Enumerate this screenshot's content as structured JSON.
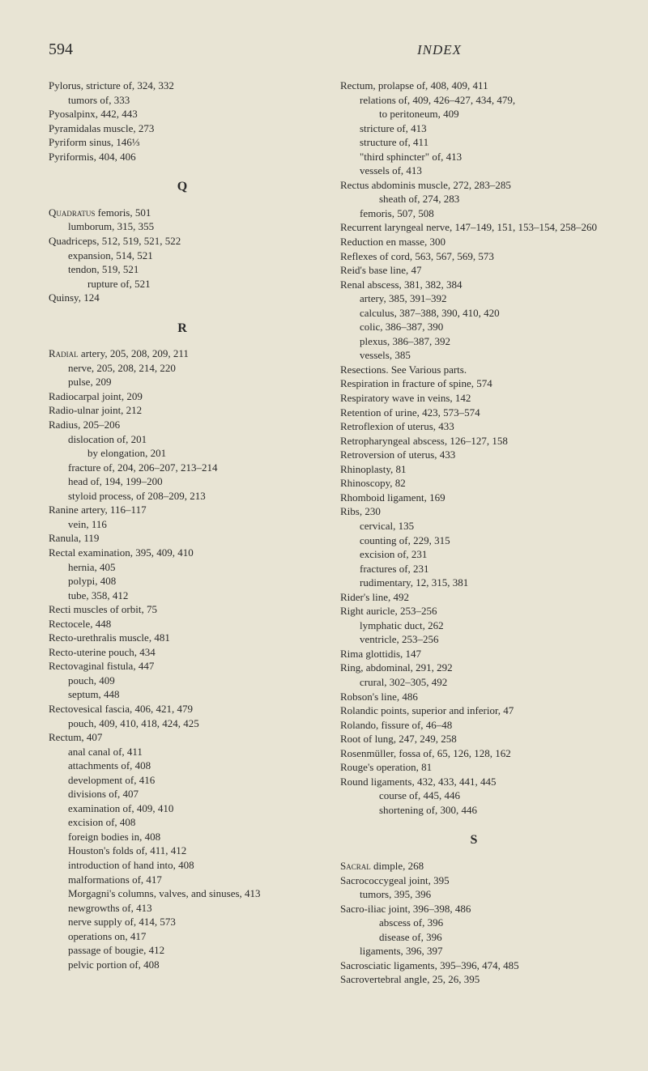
{
  "page_number": "594",
  "index_label": "INDEX",
  "left_column": [
    {
      "t": "Pylorus, stricture of, 324, 332",
      "i": 0
    },
    {
      "t": "tumors of, 333",
      "i": 1
    },
    {
      "t": "Pyosalpinx, 442, 443",
      "i": 0
    },
    {
      "t": "Pyramidalas muscle, 273",
      "i": 0
    },
    {
      "t": "Pyriform sinus, 146⅓",
      "i": 0
    },
    {
      "t": "Pyriformis, 404, 406",
      "i": 0
    },
    {
      "letter": "Q"
    },
    {
      "t": "Quadratus femoris, 501",
      "i": 0,
      "sc": true
    },
    {
      "t": "lumborum, 315, 355",
      "i": 1
    },
    {
      "t": "Quadriceps, 512, 519, 521, 522",
      "i": 0
    },
    {
      "t": "expansion, 514, 521",
      "i": 1
    },
    {
      "t": "tendon, 519, 521",
      "i": 1
    },
    {
      "t": "rupture of, 521",
      "i": 2
    },
    {
      "t": "Quinsy, 124",
      "i": 0
    },
    {
      "letter": "R"
    },
    {
      "t": "Radial artery, 205, 208, 209, 211",
      "i": 0,
      "sc": true
    },
    {
      "t": "nerve, 205, 208, 214, 220",
      "i": 1
    },
    {
      "t": "pulse, 209",
      "i": 1
    },
    {
      "t": "Radiocarpal joint, 209",
      "i": 0
    },
    {
      "t": "Radio-ulnar joint, 212",
      "i": 0
    },
    {
      "t": "Radius, 205–206",
      "i": 0
    },
    {
      "t": "dislocation of, 201",
      "i": 1
    },
    {
      "t": "by elongation, 201",
      "i": 2
    },
    {
      "t": "fracture of, 204, 206–207, 213–214",
      "i": 1
    },
    {
      "t": "head of, 194, 199–200",
      "i": 1
    },
    {
      "t": "styloid process, of 208–209, 213",
      "i": 1
    },
    {
      "t": "Ranine artery, 116–117",
      "i": 0
    },
    {
      "t": "vein, 116",
      "i": 1
    },
    {
      "t": "Ranula, 119",
      "i": 0
    },
    {
      "t": "Rectal examination, 395, 409, 410",
      "i": 0
    },
    {
      "t": "hernia, 405",
      "i": 1
    },
    {
      "t": "polypi, 408",
      "i": 1
    },
    {
      "t": "tube, 358, 412",
      "i": 1
    },
    {
      "t": "Recti muscles of orbit, 75",
      "i": 0
    },
    {
      "t": "Rectocele, 448",
      "i": 0
    },
    {
      "t": "Recto-urethralis muscle, 481",
      "i": 0
    },
    {
      "t": "Recto-uterine pouch, 434",
      "i": 0
    },
    {
      "t": "Rectovaginal fistula, 447",
      "i": 0
    },
    {
      "t": "pouch, 409",
      "i": 1
    },
    {
      "t": "septum, 448",
      "i": 1
    },
    {
      "t": "Rectovesical fascia, 406, 421, 479",
      "i": 0
    },
    {
      "t": "pouch, 409, 410, 418, 424, 425",
      "i": 1
    },
    {
      "t": "Rectum, 407",
      "i": 0
    },
    {
      "t": "anal canal of, 411",
      "i": 1
    },
    {
      "t": "attachments of, 408",
      "i": 1
    },
    {
      "t": "development of, 416",
      "i": 1
    },
    {
      "t": "divisions of, 407",
      "i": 1
    },
    {
      "t": "examination of, 409, 410",
      "i": 1
    },
    {
      "t": "excision of, 408",
      "i": 1
    },
    {
      "t": "foreign bodies in, 408",
      "i": 1
    },
    {
      "t": "Houston's folds of, 411, 412",
      "i": 1
    },
    {
      "t": "introduction of hand into, 408",
      "i": 1
    },
    {
      "t": "malformations of, 417",
      "i": 1
    },
    {
      "t": "Morgagni's columns, valves, and sinuses, 413",
      "i": 1
    },
    {
      "t": "newgrowths of, 413",
      "i": 1
    },
    {
      "t": "nerve supply of, 414, 573",
      "i": 1
    },
    {
      "t": "operations on, 417",
      "i": 1
    },
    {
      "t": "passage of bougie, 412",
      "i": 1
    },
    {
      "t": "pelvic portion of, 408",
      "i": 1
    }
  ],
  "right_column": [
    {
      "t": "Rectum, prolapse of, 408, 409, 411",
      "i": 0
    },
    {
      "t": "relations of, 409, 426–427, 434, 479,",
      "i": 1
    },
    {
      "t": "to peritoneum, 409",
      "i": 2
    },
    {
      "t": "stricture of, 413",
      "i": 1
    },
    {
      "t": "structure of, 411",
      "i": 1
    },
    {
      "t": "\"third sphincter\" of, 413",
      "i": 1
    },
    {
      "t": "vessels of, 413",
      "i": 1
    },
    {
      "t": "Rectus abdominis muscle, 272, 283–285",
      "i": 0
    },
    {
      "t": "sheath of, 274, 283",
      "i": 2
    },
    {
      "t": "femoris, 507, 508",
      "i": 1
    },
    {
      "t": "Recurrent laryngeal nerve, 147–149, 151, 153–154, 258–260",
      "i": 0
    },
    {
      "t": "Reduction en masse, 300",
      "i": 0
    },
    {
      "t": "Reflexes of cord, 563, 567, 569, 573",
      "i": 0
    },
    {
      "t": "Reid's base line, 47",
      "i": 0
    },
    {
      "t": "Renal abscess, 381, 382, 384",
      "i": 0
    },
    {
      "t": "artery, 385, 391–392",
      "i": 1
    },
    {
      "t": "calculus, 387–388, 390, 410, 420",
      "i": 1
    },
    {
      "t": "colic, 386–387, 390",
      "i": 1
    },
    {
      "t": "plexus, 386–387, 392",
      "i": 1
    },
    {
      "t": "vessels, 385",
      "i": 1
    },
    {
      "t": "Resections. See Various parts.",
      "i": 0
    },
    {
      "t": "Respiration in fracture of spine, 574",
      "i": 0
    },
    {
      "t": "Respiratory wave in veins, 142",
      "i": 0
    },
    {
      "t": "Retention of urine, 423, 573–574",
      "i": 0
    },
    {
      "t": "Retroflexion of uterus, 433",
      "i": 0
    },
    {
      "t": "Retropharyngeal abscess, 126–127, 158",
      "i": 0
    },
    {
      "t": "Retroversion of uterus, 433",
      "i": 0
    },
    {
      "t": "Rhinoplasty, 81",
      "i": 0
    },
    {
      "t": "Rhinoscopy, 82",
      "i": 0
    },
    {
      "t": "Rhomboid ligament, 169",
      "i": 0
    },
    {
      "t": "Ribs, 230",
      "i": 0
    },
    {
      "t": "cervical, 135",
      "i": 1
    },
    {
      "t": "counting of, 229, 315",
      "i": 1
    },
    {
      "t": "excision of, 231",
      "i": 1
    },
    {
      "t": "fractures of, 231",
      "i": 1
    },
    {
      "t": "rudimentary, 12, 315, 381",
      "i": 1
    },
    {
      "t": "Rider's line, 492",
      "i": 0
    },
    {
      "t": "Right auricle, 253–256",
      "i": 0
    },
    {
      "t": "lymphatic duct, 262",
      "i": 1
    },
    {
      "t": "ventricle, 253–256",
      "i": 1
    },
    {
      "t": "Rima glottidis, 147",
      "i": 0
    },
    {
      "t": "Ring, abdominal, 291, 292",
      "i": 0
    },
    {
      "t": "crural, 302–305, 492",
      "i": 1
    },
    {
      "t": "Robson's line, 486",
      "i": 0
    },
    {
      "t": "Rolandic points, superior and inferior, 47",
      "i": 0
    },
    {
      "t": "Rolando, fissure of, 46–48",
      "i": 0
    },
    {
      "t": "Root of lung, 247, 249, 258",
      "i": 0
    },
    {
      "t": "Rosenmüller, fossa of, 65, 126, 128, 162",
      "i": 0
    },
    {
      "t": "Rouge's operation, 81",
      "i": 0
    },
    {
      "t": "Round ligaments, 432, 433, 441, 445",
      "i": 0
    },
    {
      "t": "course of, 445, 446",
      "i": 2
    },
    {
      "t": "shortening of, 300, 446",
      "i": 2
    },
    {
      "letter": "S"
    },
    {
      "t": "Sacral dimple, 268",
      "i": 0,
      "sc": true
    },
    {
      "t": "Sacrococcygeal joint, 395",
      "i": 0
    },
    {
      "t": "tumors, 395, 396",
      "i": 1
    },
    {
      "t": "Sacro-iliac joint, 396–398, 486",
      "i": 0
    },
    {
      "t": "abscess of, 396",
      "i": 2
    },
    {
      "t": "disease of, 396",
      "i": 2
    },
    {
      "t": "ligaments, 396, 397",
      "i": 1
    },
    {
      "t": "Sacrosciatic ligaments, 395–396, 474, 485",
      "i": 0
    },
    {
      "t": "Sacrovertebral angle, 25, 26, 395",
      "i": 0
    }
  ]
}
